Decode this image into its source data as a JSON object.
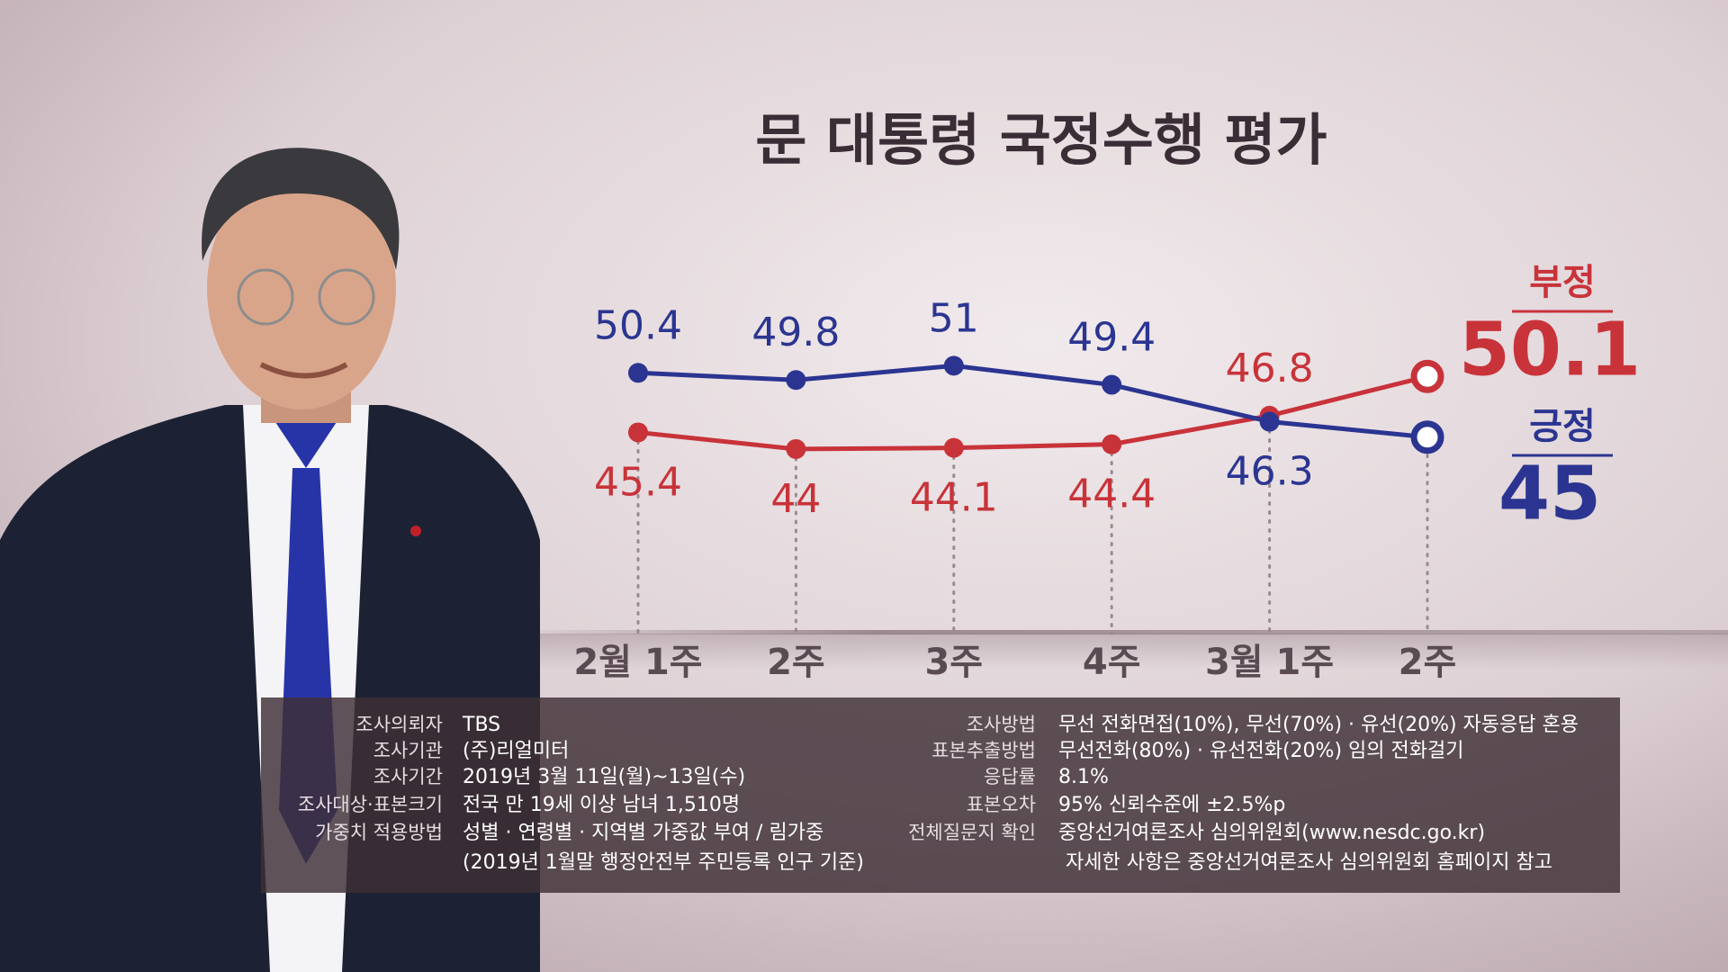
{
  "chart_data": {
    "type": "line",
    "title": "문 대통령 국정수행 평가",
    "categories": [
      "2월 1주",
      "2주",
      "3주",
      "4주",
      "3월 1주",
      "2주"
    ],
    "series": [
      {
        "name": "부정",
        "color": "#c8333a",
        "values": [
          45.4,
          44.0,
          44.1,
          44.4,
          46.8,
          50.1
        ]
      },
      {
        "name": "긍정",
        "color": "#2b3591",
        "values": [
          50.4,
          49.8,
          51.0,
          49.4,
          46.3,
          45.0
        ]
      }
    ],
    "ylim": [
      28.5,
      57
    ]
  },
  "survey_info": {
    "left": [
      {
        "label": "조사의뢰자",
        "value": "TBS"
      },
      {
        "label": "조사기관",
        "value": "(주)리얼미터"
      },
      {
        "label": "조사기간",
        "value": "2019년 3월 11일(월)~13일(수)"
      },
      {
        "label": "조사대상·표본크기",
        "value": "전국 만 19세 이상 남녀 1,510명"
      },
      {
        "label": "가중치 적용방법",
        "value": "성별 · 연령별 · 지역별 가중값 부여 / 림가중"
      },
      {
        "value": "(2019년 1월말 행정안전부 주민등록 인구 기준)"
      }
    ],
    "right": [
      {
        "label": "조사방법",
        "value": "무선 전화면접(10%), 무선(70%) · 유선(20%) 자동응답 혼용"
      },
      {
        "label": "표본추출방법",
        "value": "무선전화(80%) · 유선전화(20%) 임의 전화걸기"
      },
      {
        "label": "응답률",
        "value": "8.1%"
      },
      {
        "label": "표본오차",
        "value": "95% 신뢰수준에 ±2.5%p"
      },
      {
        "label": "전체질문지 확인",
        "value": "중앙선거여론조사 심의위원회(www.nesdc.go.kr)"
      },
      {
        "value": "자세한 사항은 중앙선거여론조사 심의위원회 홈페이지  참고"
      }
    ]
  }
}
